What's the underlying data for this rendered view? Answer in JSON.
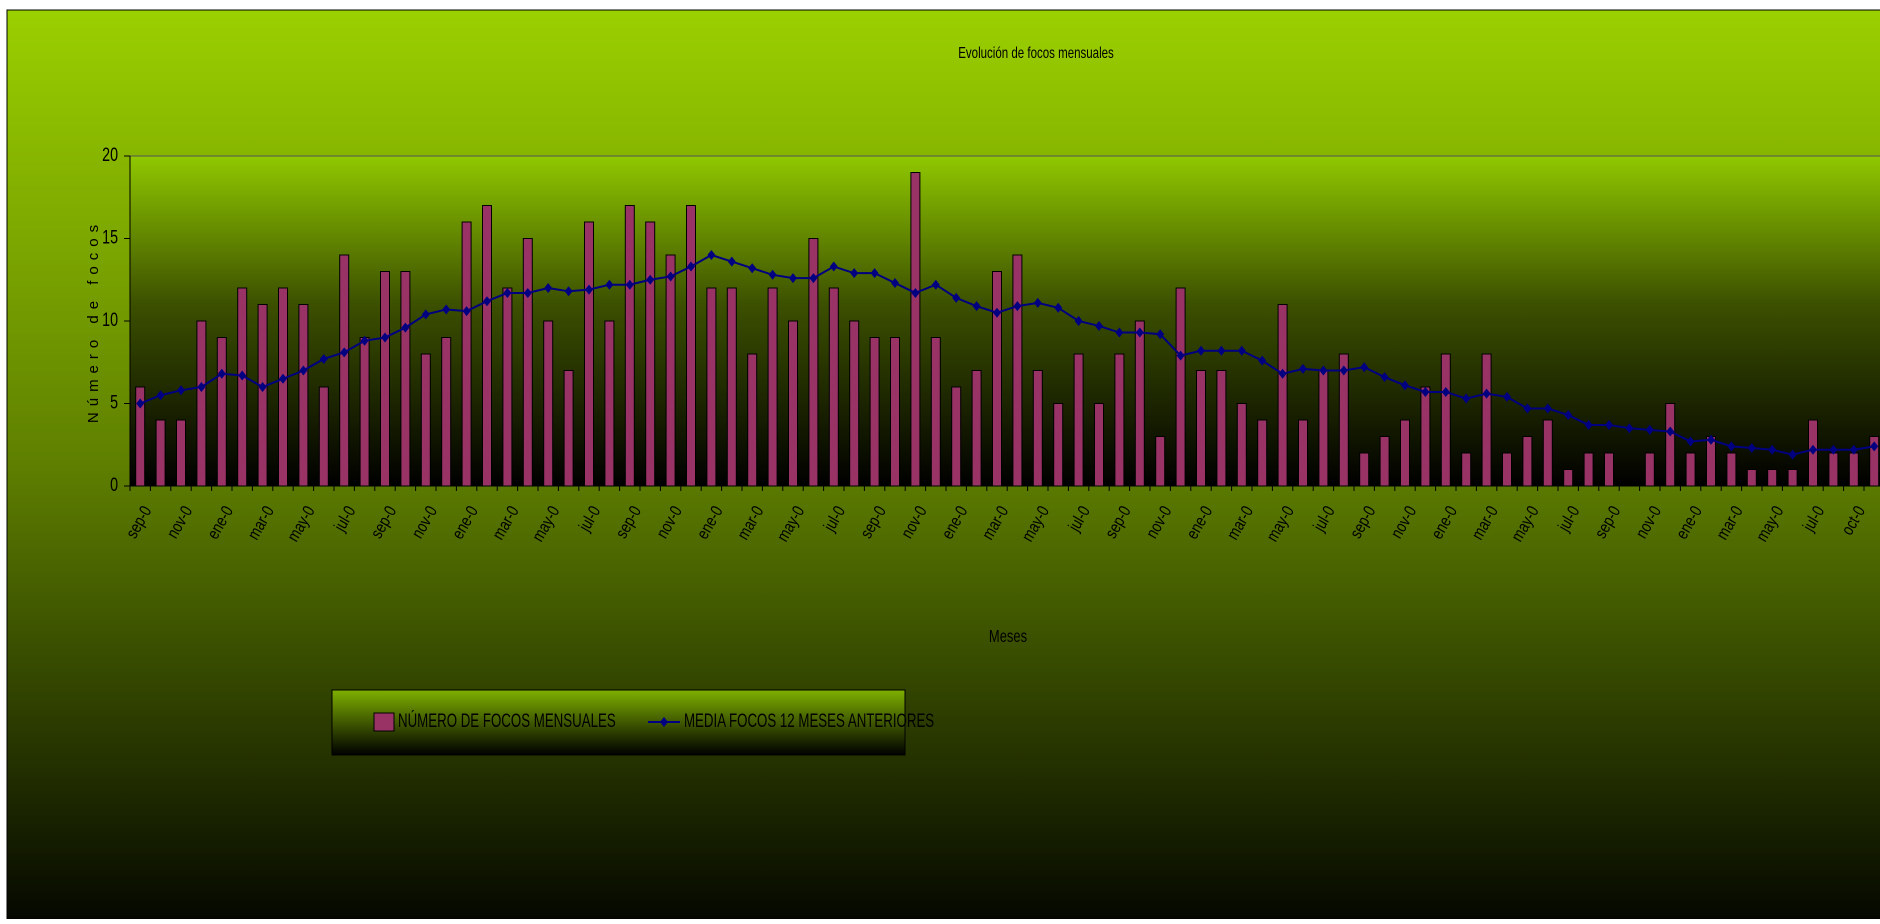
{
  "chart_data": {
    "type": "bar-line",
    "title": "Evolución de focos mensuales",
    "x_label": "Meses",
    "y_label": "Número de focos",
    "categories": [
      "sep-0",
      null,
      "nov-0",
      null,
      "ene-0",
      null,
      "mar-0",
      null,
      "may-0",
      null,
      "jul-0",
      null,
      "sep-0",
      null,
      "nov-0",
      null,
      "ene-0",
      null,
      "mar-0",
      null,
      "may-0",
      null,
      "jul-0",
      null,
      "sep-0",
      null,
      "nov-0",
      null,
      "ene-0",
      null,
      "mar-0",
      null,
      "may-0",
      null,
      "jul-0",
      null,
      "sep-0",
      null,
      "nov-0",
      null,
      "ene-0",
      null,
      "mar-0",
      null,
      "may-0",
      null,
      "jul-0",
      null,
      "sep-0",
      null,
      "nov-0",
      null,
      "ene-0",
      null,
      "mar-0",
      null,
      "may-0",
      null,
      "jul-0",
      null,
      "sep-0",
      null,
      "nov-0",
      null,
      "ene-0",
      null,
      "mar-0",
      null,
      "may-0",
      null,
      "jul-0",
      null,
      "sep-0",
      null,
      "nov-0",
      null,
      "ene-0",
      null,
      "mar-0",
      null,
      "may-0",
      null,
      "jul-0",
      null,
      "oct-0",
      null
    ],
    "series": [
      {
        "name": "NÚMERO DE FOCOS MENSUALES",
        "kind": "bar",
        "color": "#993366",
        "values": [
          6,
          4,
          4,
          10,
          9,
          12,
          11,
          12,
          11,
          6,
          14,
          9,
          13,
          13,
          8,
          9,
          16,
          17,
          12,
          15,
          10,
          7,
          16,
          10,
          17,
          16,
          14,
          17,
          12,
          12,
          8,
          12,
          10,
          15,
          12,
          10,
          9,
          9,
          19,
          9,
          6,
          7,
          13,
          14,
          7,
          5,
          8,
          5,
          8,
          10,
          3,
          12,
          7,
          7,
          5,
          4,
          11,
          4,
          7,
          8,
          2,
          3,
          4,
          6,
          8,
          2,
          8,
          2,
          3,
          4,
          1,
          2,
          2,
          0,
          2,
          5,
          2,
          3,
          2,
          1,
          1,
          1,
          4,
          2,
          2,
          3
        ]
      },
      {
        "name": "MEDIA FOCOS 12 MESES ANTERIORES",
        "kind": "line",
        "color": "#000080",
        "values": [
          5,
          5.5,
          5.8,
          6,
          6.8,
          6.7,
          6,
          6.5,
          7,
          7.7,
          8.1,
          8.8,
          9,
          9.6,
          10.4,
          10.7,
          10.6,
          11.2,
          11.7,
          11.7,
          12,
          11.8,
          11.9,
          12.2,
          12.2,
          12.5,
          12.7,
          13.3,
          14,
          13.6,
          13.2,
          12.8,
          12.6,
          12.6,
          13.3,
          12.9,
          12.9,
          12.3,
          11.7,
          12.2,
          11.4,
          10.9,
          10.5,
          10.9,
          11.1,
          10.8,
          10,
          9.7,
          9.3,
          9.3,
          9.2,
          7.9,
          8.2,
          8.2,
          8.2,
          7.6,
          6.8,
          7.1,
          7,
          7,
          7.2,
          6.6,
          6.1,
          5.7,
          5.7,
          5.3,
          5.6,
          5.4,
          4.7,
          4.7,
          4.3,
          3.7,
          3.7,
          3.5,
          3.4,
          3.3,
          2.7,
          2.8,
          2.4,
          2.3,
          2.2,
          1.9,
          2.2,
          2.2,
          2.2,
          2.4
        ]
      }
    ],
    "ylim": [
      0,
      20
    ],
    "yticks": [
      0,
      5,
      10,
      15,
      20
    ],
    "grid": false
  }
}
